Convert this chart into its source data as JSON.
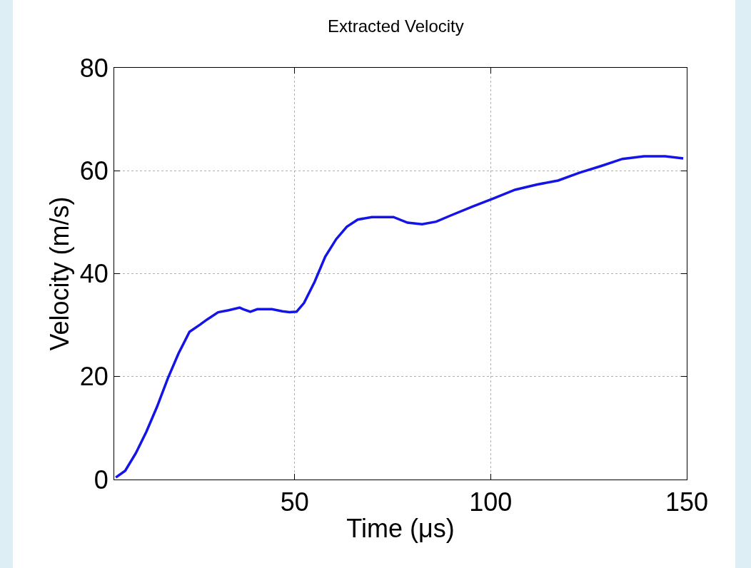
{
  "chart_data": {
    "type": "line",
    "title": "Extracted Velocity",
    "xlabel": "Time (μs)",
    "ylabel": "Velocity (m/s)",
    "x": [
      4.4,
      6.8,
      9.5,
      12.2,
      14.9,
      17.7,
      20.4,
      23.2,
      25.9,
      27.7,
      30.5,
      33.2,
      36,
      36.9,
      38.7,
      40.5,
      44.2,
      46.9,
      48.7,
      50.5,
      52.4,
      55.1,
      57.8,
      60.6,
      63.3,
      66.1,
      69.7,
      75.2,
      78.8,
      82.5,
      86.1,
      89.8,
      95.3,
      100.7,
      106.2,
      111.7,
      117.2,
      122.6,
      128.1,
      133.6,
      139.1,
      144.5,
      149.1
    ],
    "series": [
      {
        "color": "#1414e6",
        "values": [
          0.4,
          1.7,
          5.1,
          9.3,
          14.1,
          19.7,
          24.5,
          28.7,
          30.1,
          31.1,
          32.5,
          32.9,
          33.4,
          33.1,
          32.6,
          33.1,
          33.1,
          32.7,
          32.5,
          32.6,
          34.3,
          38.4,
          43.3,
          46.7,
          49.1,
          50.5,
          51.0,
          51.0,
          49.9,
          49.6,
          50.1,
          51.3,
          53.0,
          54.6,
          56.3,
          57.3,
          58.1,
          59.6,
          60.9,
          62.3,
          62.8,
          62.8,
          62.4
        ]
      }
    ],
    "xlim": [
      4,
      150
    ],
    "xticks": [
      50,
      100,
      150
    ],
    "ylim": [
      0,
      80
    ],
    "yticks": [
      0,
      20,
      40,
      60,
      80
    ],
    "grid": true,
    "marker": "none",
    "line_style": "solid"
  }
}
